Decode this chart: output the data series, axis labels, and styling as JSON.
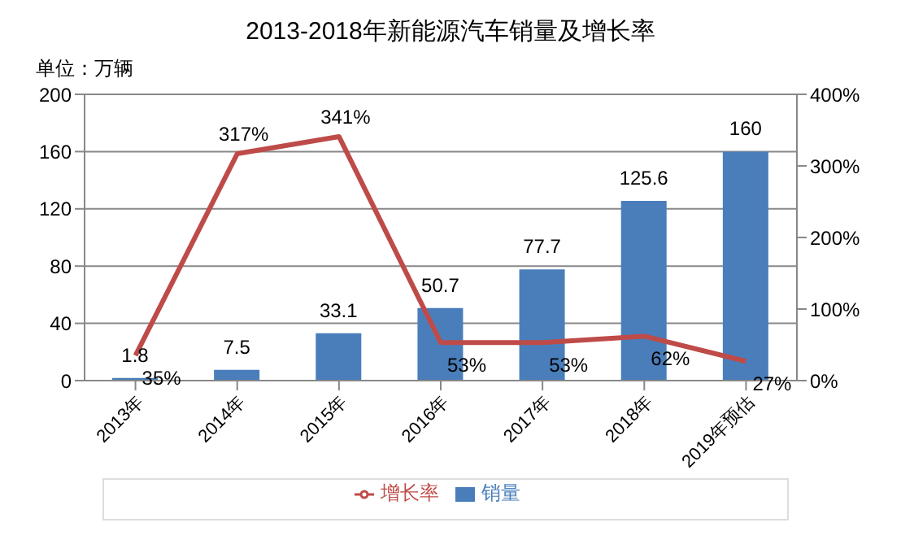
{
  "chart_data": {
    "type": "bar",
    "title": "2013-2018年新能源汽车销量及增长率",
    "annotations": [
      "单位：万辆"
    ],
    "categories": [
      "2013年",
      "2014年",
      "2015年",
      "2016年",
      "2017年",
      "2018年",
      "2019年预估"
    ],
    "series": [
      {
        "name": "销量",
        "color": "#4a7ebb",
        "values": [
          1.8,
          7.5,
          33.1,
          50.7,
          77.7,
          125.6,
          160
        ],
        "value_labels": [
          "1.8",
          "7.5",
          "33.1",
          "50.7",
          "77.7",
          "125.6",
          "160"
        ]
      },
      {
        "name": "增长率",
        "type": "line",
        "axis": "y2",
        "color": "#be4b48",
        "values": [
          35,
          317,
          341,
          53,
          53,
          62,
          27
        ],
        "value_labels": [
          "35%",
          "317%",
          "341%",
          "53%",
          "53%",
          "62%",
          "27%"
        ]
      }
    ],
    "ylim": [
      0,
      200
    ],
    "yticks": [
      0,
      40,
      80,
      120,
      160,
      200
    ],
    "y2lim": [
      0,
      400
    ],
    "y2ticks": [
      {
        "value": 0,
        "label": "0%"
      },
      {
        "value": 100,
        "label": "100%"
      },
      {
        "value": 200,
        "label": "200%"
      },
      {
        "value": 300,
        "label": "300%"
      },
      {
        "value": 400,
        "label": "400%"
      }
    ],
    "grid": "y",
    "legend": "bottom",
    "marker": "none"
  }
}
